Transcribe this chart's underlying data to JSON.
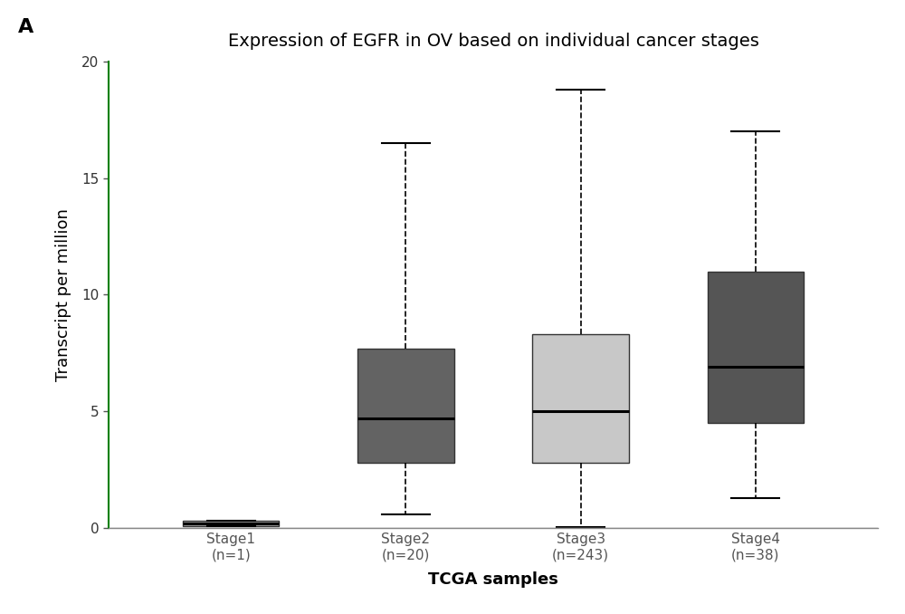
{
  "title": "Expression of EGFR in OV based on individual cancer stages",
  "xlabel": "TCGA samples",
  "ylabel": "Transcript per million",
  "panel_label": "A",
  "ylim": [
    0,
    20
  ],
  "yticks": [
    0,
    5,
    10,
    15,
    20
  ],
  "categories": [
    "Stage1\n(n=1)",
    "Stage2\n(n=20)",
    "Stage3\n(n=243)",
    "Stage4\n(n=38)"
  ],
  "boxes": [
    {
      "q1": 0.1,
      "median": 0.2,
      "q3": 0.3,
      "whislo": 0.1,
      "whishi": 0.3
    },
    {
      "q1": 2.8,
      "median": 4.7,
      "q3": 7.7,
      "whislo": 0.6,
      "whishi": 16.5
    },
    {
      "q1": 2.8,
      "median": 5.0,
      "q3": 8.3,
      "whislo": 0.05,
      "whishi": 18.8
    },
    {
      "q1": 4.5,
      "median": 6.9,
      "q3": 11.0,
      "whislo": 1.3,
      "whishi": 17.0
    }
  ],
  "box_colors": [
    "#aaaaaa",
    "#636363",
    "#c8c8c8",
    "#555555"
  ],
  "background_color": "#ffffff",
  "title_fontsize": 14,
  "axis_label_fontsize": 13,
  "tick_label_fontsize": 11,
  "left_spine_color": "#008000",
  "bottom_spine_color": "#888888"
}
